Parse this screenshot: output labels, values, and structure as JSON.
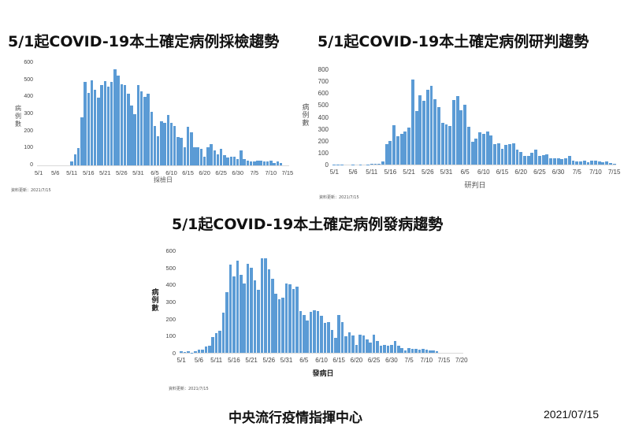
{
  "titles": {
    "chart1": "5/1起COVID-19本土確定病例採檢趨勢",
    "chart2": "5/1起COVID-19本土確定病例研判趨勢",
    "chart3": "5/1起COVID-19本土確定病例發病趨勢"
  },
  "footer": {
    "organization": "中央流行疫情指揮中心",
    "date": "2021/07/15"
  },
  "colors": {
    "bar": "#5b9bd5",
    "axis": "#d9d9d9",
    "text": "#111111"
  },
  "chart_data": [
    {
      "type": "bar",
      "title": "5/1起COVID-19本土確定病例採檢趨勢",
      "xlabel": "採檢日",
      "ylabel": "病例數",
      "ylim": [
        0,
        600
      ],
      "yticks": [
        0,
        100,
        200,
        300,
        400,
        500,
        600
      ],
      "xticks": [
        "5/1",
        "5/6",
        "5/11",
        "5/16",
        "5/21",
        "5/26",
        "5/31",
        "6/5",
        "6/10",
        "6/15",
        "6/20",
        "6/25",
        "6/30",
        "7/5",
        "7/10",
        "7/15"
      ],
      "x_start": "5/1",
      "n_days": 76,
      "grid": false,
      "legend": null,
      "source_note": "資料更新：2021/7/15",
      "values": [
        0,
        0,
        0,
        0,
        0,
        0,
        0,
        0,
        0,
        0,
        25,
        65,
        100,
        280,
        490,
        425,
        500,
        445,
        395,
        470,
        495,
        460,
        490,
        565,
        525,
        475,
        470,
        420,
        350,
        300,
        470,
        435,
        400,
        420,
        315,
        230,
        170,
        260,
        250,
        295,
        250,
        230,
        165,
        160,
        105,
        225,
        195,
        105,
        105,
        95,
        50,
        105,
        125,
        90,
        65,
        95,
        60,
        45,
        50,
        50,
        35,
        90,
        35,
        30,
        25,
        25,
        30,
        28,
        25,
        25,
        28,
        12,
        22,
        15,
        0,
        0
      ]
    },
    {
      "type": "bar",
      "title": "5/1起COVID-19本土確定病例研判趨勢",
      "xlabel": "研判日",
      "ylabel": "病例數",
      "ylim": [
        0,
        800
      ],
      "yticks": [
        0,
        100,
        200,
        300,
        400,
        500,
        600,
        700,
        800
      ],
      "xticks": [
        "5/1",
        "5/6",
        "5/11",
        "5/16",
        "5/21",
        "5/26",
        "5/31",
        "6/5",
        "6/10",
        "6/15",
        "6/20",
        "6/25",
        "6/30",
        "7/5",
        "7/10",
        "7/15"
      ],
      "x_start": "5/1",
      "n_days": 76,
      "grid": false,
      "legend": null,
      "source_note": "資料更新：2021/7/15",
      "values": [
        2,
        2,
        1,
        0,
        0,
        1,
        0,
        1,
        0,
        2,
        5,
        10,
        10,
        25,
        175,
        200,
        330,
        235,
        260,
        280,
        310,
        715,
        450,
        585,
        535,
        625,
        660,
        550,
        480,
        350,
        340,
        325,
        540,
        575,
        455,
        500,
        315,
        195,
        215,
        270,
        255,
        280,
        245,
        170,
        180,
        130,
        165,
        175,
        180,
        125,
        105,
        70,
        75,
        100,
        125,
        75,
        78,
        85,
        55,
        55,
        50,
        45,
        55,
        70,
        35,
        25,
        25,
        35,
        20,
        30,
        30,
        25,
        20,
        25,
        15,
        10
      ]
    },
    {
      "type": "bar",
      "title": "5/1起COVID-19本土確定病例發病趨勢",
      "xlabel": "發病日",
      "ylabel": "病例數",
      "ylim": [
        0,
        600
      ],
      "yticks": [
        0,
        100,
        200,
        300,
        400,
        500,
        600
      ],
      "xticks": [
        "5/1",
        "5/6",
        "5/11",
        "5/16",
        "5/21",
        "5/26",
        "5/31",
        "6/5",
        "6/10",
        "6/15",
        "6/20",
        "6/25",
        "6/30",
        "7/5",
        "7/10",
        "7/15",
        "7/20"
      ],
      "x_start": "5/1",
      "n_days": 81,
      "grid": false,
      "legend": null,
      "source_note": "資料更新：2021/7/15",
      "values": [
        8,
        5,
        8,
        2,
        8,
        18,
        20,
        35,
        40,
        92,
        115,
        130,
        235,
        355,
        515,
        450,
        540,
        455,
        405,
        520,
        500,
        425,
        370,
        555,
        555,
        490,
        435,
        345,
        312,
        325,
        405,
        400,
        375,
        390,
        245,
        220,
        190,
        240,
        250,
        245,
        215,
        175,
        180,
        135,
        88,
        220,
        180,
        98,
        118,
        102,
        45,
        105,
        102,
        78,
        62,
        105,
        68,
        42,
        48,
        40,
        48,
        68,
        42,
        28,
        12,
        30,
        25,
        25,
        20,
        25,
        18,
        12,
        12,
        10,
        0,
        0,
        0,
        0,
        0,
        0,
        0
      ]
    }
  ]
}
